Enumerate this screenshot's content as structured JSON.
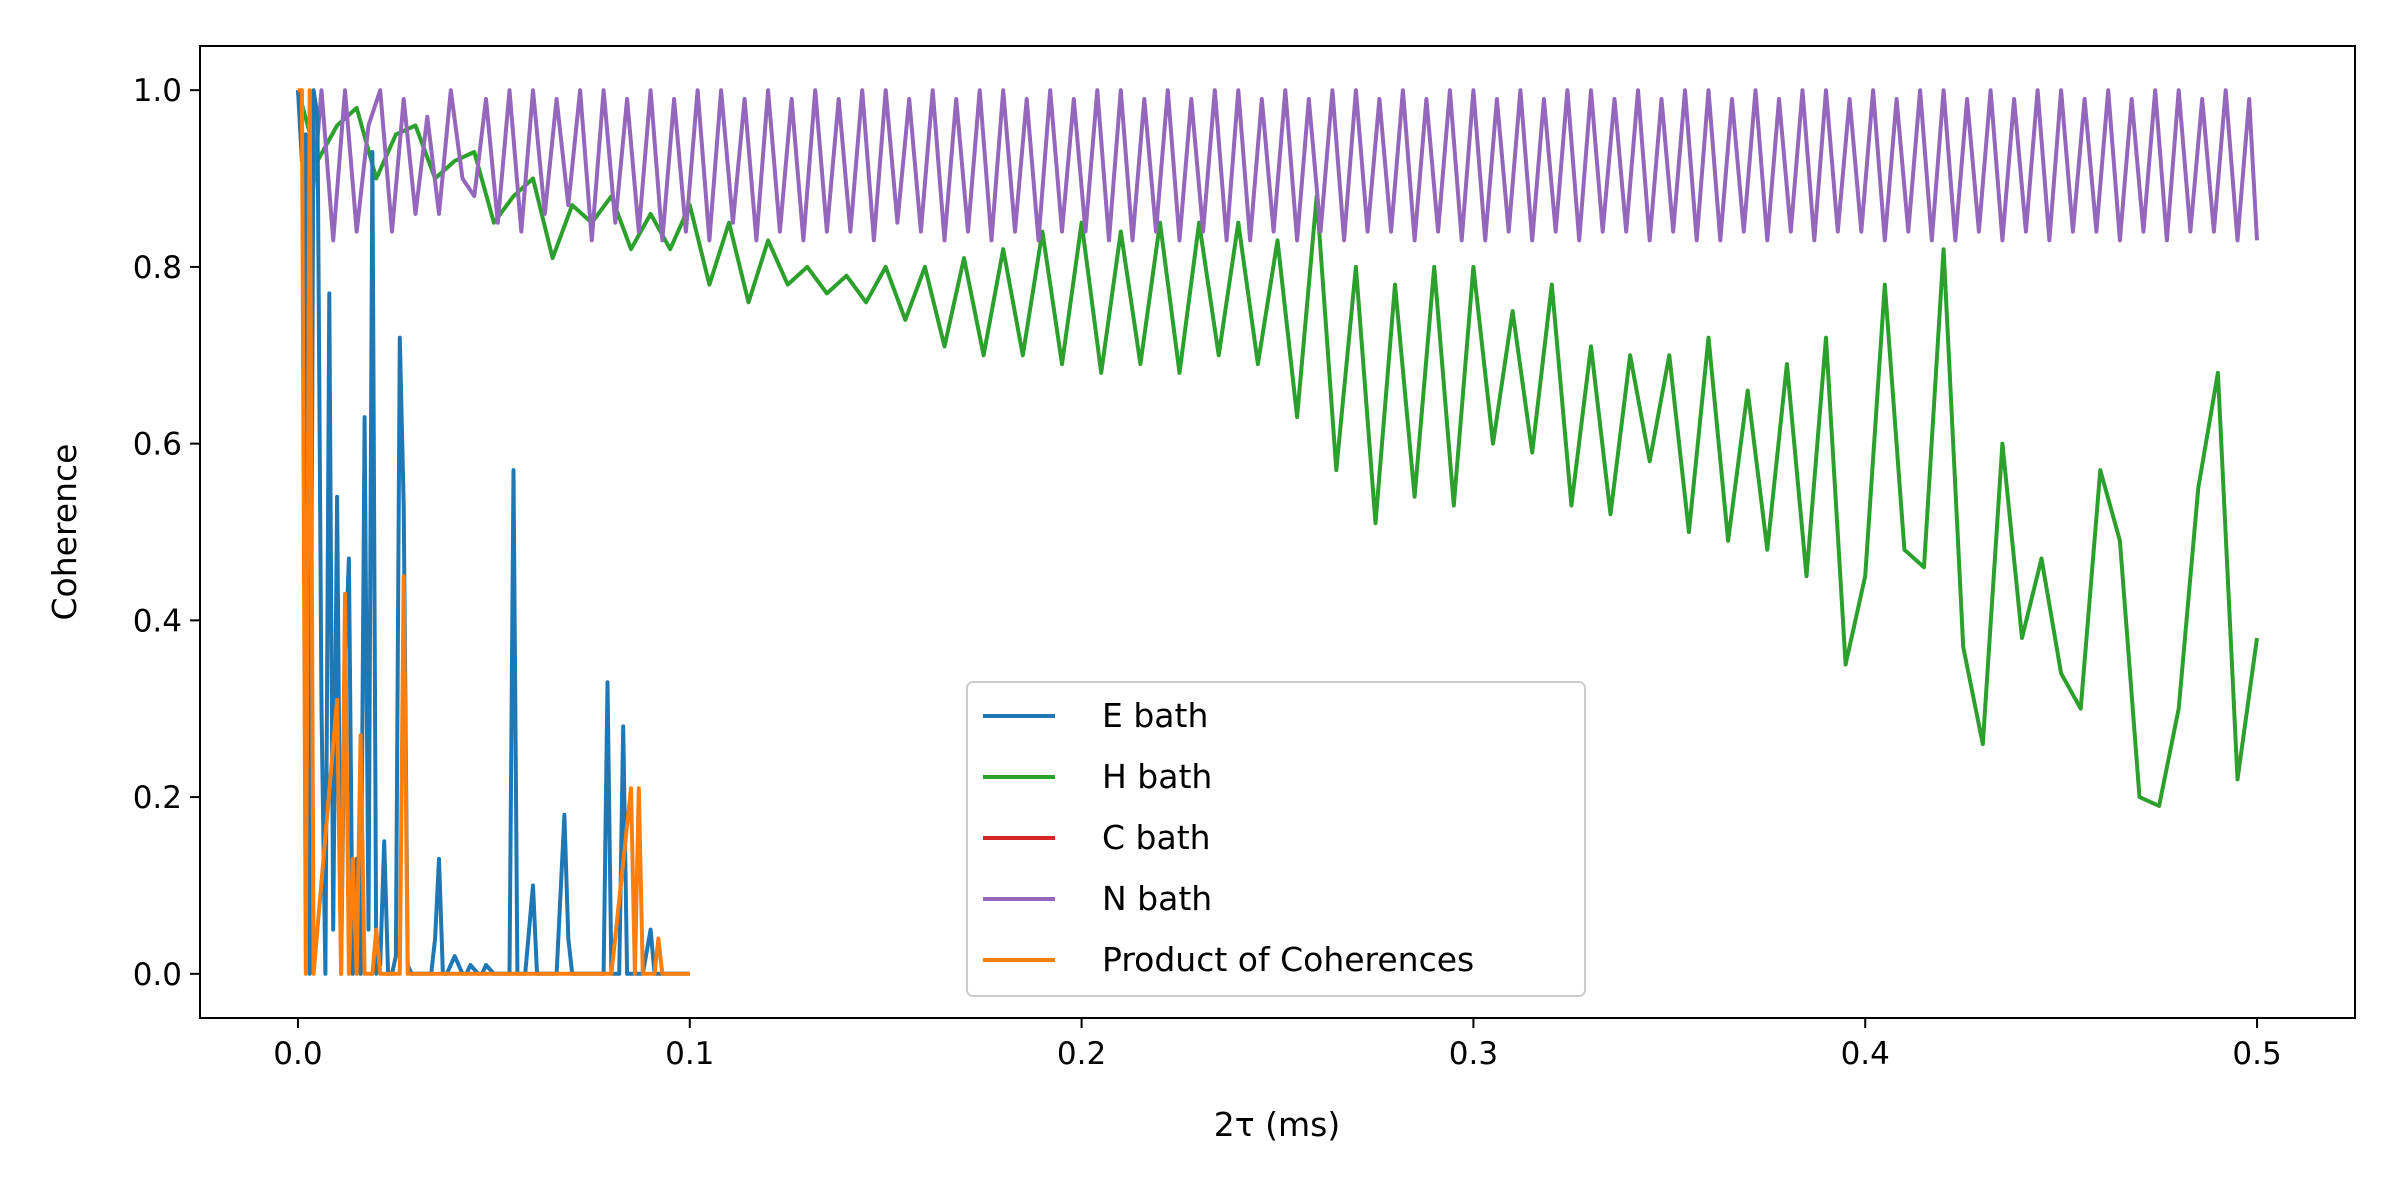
{
  "chart_data": {
    "type": "line",
    "title": "",
    "xlabel": "2τ (ms)",
    "ylabel": "Coherence",
    "xlim": [
      -0.025,
      0.525
    ],
    "ylim": [
      -0.05,
      1.05
    ],
    "xticks": [
      0.0,
      0.1,
      0.2,
      0.3,
      0.4,
      0.5
    ],
    "xtick_labels": [
      "0.0",
      "0.1",
      "0.2",
      "0.3",
      "0.4",
      "0.5"
    ],
    "yticks": [
      0.0,
      0.2,
      0.4,
      0.6,
      0.8,
      1.0
    ],
    "ytick_labels": [
      "0.0",
      "0.2",
      "0.4",
      "0.6",
      "0.8",
      "1.0"
    ],
    "grid": false,
    "legend_position": "lower center",
    "series": [
      {
        "name": "E bath",
        "color": "#1f77b4",
        "x": [
          0.0,
          0.001,
          0.002,
          0.003,
          0.004,
          0.005,
          0.006,
          0.007,
          0.008,
          0.009,
          0.01,
          0.011,
          0.012,
          0.013,
          0.014,
          0.015,
          0.016,
          0.017,
          0.018,
          0.019,
          0.02,
          0.021,
          0.022,
          0.023,
          0.024,
          0.025,
          0.026,
          0.027,
          0.028,
          0.029,
          0.03,
          0.032,
          0.034,
          0.035,
          0.036,
          0.037,
          0.038,
          0.04,
          0.042,
          0.043,
          0.044,
          0.046,
          0.047,
          0.048,
          0.05,
          0.051,
          0.052,
          0.054,
          0.055,
          0.056,
          0.057,
          0.058,
          0.06,
          0.061,
          0.062,
          0.063,
          0.064,
          0.066,
          0.068,
          0.069,
          0.07,
          0.071,
          0.072,
          0.074,
          0.076,
          0.078,
          0.079,
          0.08,
          0.081,
          0.082,
          0.083,
          0.084,
          0.085,
          0.086,
          0.087,
          0.088,
          0.09,
          0.091,
          0.092,
          0.093,
          0.094,
          0.096,
          0.098,
          0.1
        ],
        "y": [
          1.0,
          0.92,
          0.95,
          0.0,
          1.0,
          0.97,
          0.3,
          0.0,
          0.77,
          0.05,
          0.54,
          0.0,
          0.35,
          0.47,
          0.0,
          0.13,
          0.0,
          0.63,
          0.05,
          0.93,
          0.0,
          0.01,
          0.15,
          0.0,
          0.0,
          0.02,
          0.72,
          0.53,
          0.01,
          0.0,
          0.0,
          0.0,
          0.0,
          0.04,
          0.13,
          0.0,
          0.0,
          0.02,
          0.0,
          0.0,
          0.01,
          0.0,
          0.0,
          0.01,
          0.0,
          0.0,
          0.0,
          0.0,
          0.57,
          0.0,
          0.0,
          0.0,
          0.1,
          0.0,
          0.0,
          0.0,
          0.0,
          0.0,
          0.18,
          0.04,
          0.0,
          0.0,
          0.0,
          0.0,
          0.0,
          0.0,
          0.33,
          0.0,
          0.0,
          0.0,
          0.28,
          0.0,
          0.0,
          0.0,
          0.0,
          0.0,
          0.05,
          0.0,
          0.0,
          0.0,
          0.0,
          0.0,
          0.0,
          0.0
        ]
      },
      {
        "name": "H bath",
        "color": "#2ca02c",
        "x": [
          0.0,
          0.005,
          0.01,
          0.015,
          0.02,
          0.025,
          0.03,
          0.035,
          0.04,
          0.045,
          0.05,
          0.055,
          0.06,
          0.065,
          0.07,
          0.075,
          0.08,
          0.085,
          0.09,
          0.095,
          0.1,
          0.105,
          0.11,
          0.115,
          0.12,
          0.125,
          0.13,
          0.135,
          0.14,
          0.145,
          0.15,
          0.155,
          0.16,
          0.165,
          0.17,
          0.175,
          0.18,
          0.185,
          0.19,
          0.195,
          0.2,
          0.205,
          0.21,
          0.215,
          0.22,
          0.225,
          0.23,
          0.235,
          0.24,
          0.245,
          0.25,
          0.255,
          0.26,
          0.265,
          0.27,
          0.275,
          0.28,
          0.285,
          0.29,
          0.295,
          0.3,
          0.305,
          0.31,
          0.315,
          0.32,
          0.325,
          0.33,
          0.335,
          0.34,
          0.345,
          0.35,
          0.355,
          0.36,
          0.365,
          0.37,
          0.375,
          0.38,
          0.385,
          0.39,
          0.395,
          0.4,
          0.405,
          0.41,
          0.415,
          0.42,
          0.425,
          0.43,
          0.435,
          0.44,
          0.445,
          0.45,
          0.455,
          0.46,
          0.465,
          0.47,
          0.475,
          0.48,
          0.485,
          0.49,
          0.495,
          0.5
        ],
        "y": [
          1.0,
          0.92,
          0.96,
          0.98,
          0.9,
          0.95,
          0.96,
          0.9,
          0.92,
          0.93,
          0.85,
          0.88,
          0.9,
          0.81,
          0.87,
          0.85,
          0.88,
          0.82,
          0.86,
          0.82,
          0.87,
          0.78,
          0.85,
          0.76,
          0.83,
          0.78,
          0.8,
          0.77,
          0.79,
          0.76,
          0.8,
          0.74,
          0.8,
          0.71,
          0.81,
          0.7,
          0.82,
          0.7,
          0.84,
          0.69,
          0.85,
          0.68,
          0.84,
          0.69,
          0.85,
          0.68,
          0.85,
          0.7,
          0.85,
          0.69,
          0.83,
          0.63,
          0.88,
          0.57,
          0.8,
          0.51,
          0.78,
          0.54,
          0.8,
          0.53,
          0.8,
          0.6,
          0.75,
          0.59,
          0.78,
          0.53,
          0.71,
          0.52,
          0.7,
          0.58,
          0.7,
          0.5,
          0.72,
          0.49,
          0.66,
          0.48,
          0.69,
          0.45,
          0.72,
          0.35,
          0.45,
          0.78,
          0.48,
          0.46,
          0.82,
          0.37,
          0.26,
          0.6,
          0.38,
          0.47,
          0.34,
          0.3,
          0.57,
          0.49,
          0.2,
          0.19,
          0.3,
          0.55,
          0.68,
          0.22,
          0.38
        ]
      },
      {
        "name": "C bath",
        "color": "#d62728",
        "x": [],
        "y": []
      },
      {
        "name": "N bath",
        "color": "#9467bd",
        "x": [
          0.0,
          0.003,
          0.006,
          0.009,
          0.012,
          0.015,
          0.018,
          0.021,
          0.024,
          0.027,
          0.03,
          0.033,
          0.036,
          0.039,
          0.042,
          0.045,
          0.048,
          0.051,
          0.054,
          0.057,
          0.06,
          0.063,
          0.066,
          0.069,
          0.072,
          0.075,
          0.078,
          0.081,
          0.084,
          0.087,
          0.09,
          0.093,
          0.096,
          0.099,
          0.102,
          0.105,
          0.108,
          0.111,
          0.114,
          0.117,
          0.12,
          0.123,
          0.126,
          0.129,
          0.132,
          0.135,
          0.138,
          0.141,
          0.144,
          0.147,
          0.15,
          0.153,
          0.156,
          0.159,
          0.162,
          0.165,
          0.168,
          0.171,
          0.174,
          0.177,
          0.18,
          0.183,
          0.186,
          0.189,
          0.192,
          0.195,
          0.198,
          0.201,
          0.204,
          0.207,
          0.21,
          0.213,
          0.216,
          0.219,
          0.222,
          0.225,
          0.228,
          0.231,
          0.234,
          0.237,
          0.24,
          0.243,
          0.246,
          0.249,
          0.252,
          0.255,
          0.258,
          0.261,
          0.264,
          0.267,
          0.27,
          0.273,
          0.276,
          0.279,
          0.282,
          0.285,
          0.288,
          0.291,
          0.294,
          0.297,
          0.3,
          0.303,
          0.306,
          0.309,
          0.312,
          0.315,
          0.318,
          0.321,
          0.324,
          0.327,
          0.33,
          0.333,
          0.336,
          0.339,
          0.342,
          0.345,
          0.348,
          0.351,
          0.354,
          0.357,
          0.36,
          0.363,
          0.366,
          0.369,
          0.372,
          0.375,
          0.378,
          0.381,
          0.384,
          0.387,
          0.39,
          0.393,
          0.396,
          0.399,
          0.402,
          0.405,
          0.408,
          0.411,
          0.414,
          0.417,
          0.42,
          0.423,
          0.426,
          0.429,
          0.432,
          0.435,
          0.438,
          0.441,
          0.444,
          0.447,
          0.45,
          0.453,
          0.456,
          0.459,
          0.462,
          0.465,
          0.468,
          0.471,
          0.474,
          0.477,
          0.48,
          0.483,
          0.486,
          0.489,
          0.492,
          0.495,
          0.498,
          0.5
        ],
        "y": [
          1.0,
          0.84,
          1.0,
          0.83,
          1.0,
          0.84,
          0.96,
          1.0,
          0.84,
          0.99,
          0.86,
          0.97,
          0.86,
          1.0,
          0.9,
          0.88,
          0.99,
          0.85,
          1.0,
          0.84,
          1.0,
          0.86,
          0.99,
          0.87,
          1.0,
          0.83,
          1.0,
          0.85,
          0.99,
          0.84,
          1.0,
          0.83,
          0.99,
          0.84,
          1.0,
          0.83,
          1.0,
          0.85,
          0.99,
          0.83,
          1.0,
          0.84,
          0.99,
          0.83,
          1.0,
          0.84,
          0.99,
          0.84,
          1.0,
          0.83,
          1.0,
          0.85,
          0.99,
          0.84,
          1.0,
          0.83,
          0.99,
          0.84,
          1.0,
          0.83,
          1.0,
          0.84,
          0.99,
          0.83,
          1.0,
          0.84,
          0.99,
          0.84,
          1.0,
          0.83,
          1.0,
          0.83,
          0.99,
          0.84,
          1.0,
          0.83,
          0.99,
          0.84,
          1.0,
          0.83,
          1.0,
          0.83,
          0.99,
          0.84,
          1.0,
          0.83,
          0.99,
          0.84,
          1.0,
          0.83,
          1.0,
          0.84,
          0.99,
          0.84,
          1.0,
          0.83,
          0.99,
          0.84,
          1.0,
          0.83,
          1.0,
          0.83,
          0.99,
          0.84,
          1.0,
          0.83,
          0.99,
          0.84,
          1.0,
          0.83,
          1.0,
          0.84,
          0.99,
          0.84,
          1.0,
          0.83,
          0.99,
          0.84,
          1.0,
          0.83,
          1.0,
          0.83,
          0.99,
          0.84,
          1.0,
          0.83,
          0.99,
          0.84,
          1.0,
          0.83,
          1.0,
          0.84,
          0.99,
          0.84,
          1.0,
          0.83,
          0.99,
          0.84,
          1.0,
          0.83,
          1.0,
          0.83,
          0.99,
          0.84,
          1.0,
          0.83,
          0.99,
          0.84,
          1.0,
          0.83,
          1.0,
          0.84,
          0.99,
          0.84,
          1.0,
          0.83,
          0.99,
          0.84,
          1.0,
          0.83,
          1.0,
          0.84,
          0.99,
          0.84,
          1.0,
          0.83,
          0.99,
          0.83
        ]
      },
      {
        "name": "Product of Coherences",
        "color": "#ff7f0e",
        "x": [
          0.0,
          0.001,
          0.002,
          0.003,
          0.004,
          0.01,
          0.011,
          0.012,
          0.013,
          0.014,
          0.015,
          0.016,
          0.017,
          0.018,
          0.019,
          0.02,
          0.021,
          0.022,
          0.026,
          0.027,
          0.028,
          0.029,
          0.03,
          0.05,
          0.08,
          0.085,
          0.086,
          0.087,
          0.088,
          0.09,
          0.091,
          0.092,
          0.093,
          0.095,
          0.1
        ],
        "y": [
          1.0,
          1.0,
          0.0,
          1.0,
          0.0,
          0.31,
          0.0,
          0.43,
          0.0,
          0.13,
          0.0,
          0.27,
          0.0,
          0.0,
          0.0,
          0.05,
          0.0,
          0.0,
          0.0,
          0.45,
          0.0,
          0.0,
          0.0,
          0.0,
          0.0,
          0.21,
          0.0,
          0.21,
          0.0,
          0.0,
          0.0,
          0.04,
          0.0,
          0.0,
          0.0
        ]
      }
    ]
  }
}
